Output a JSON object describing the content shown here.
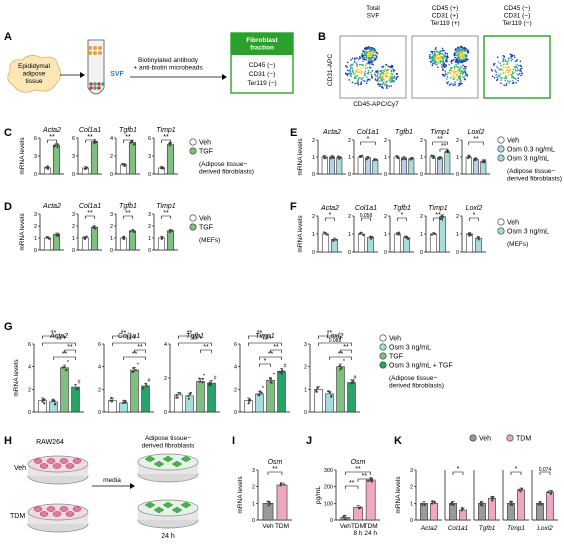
{
  "colors": {
    "veh": "#ffffff",
    "tgf": "#7fbf7f",
    "osm_low": "#b9d2ea",
    "osm": "#a6dcdc",
    "combo": "#2aa36a",
    "tdm": "#f0a8be",
    "veh_gray": "#9a9a9a",
    "box_green": "#2ca02c"
  },
  "panelA": {
    "letter": "A",
    "tissue": "Epididymal\nadipose\ntissue",
    "svf": "SVF",
    "antibody": "Biotinylated antibody\n+ anti-biotin microbeads",
    "fraction_title": "Fibroblast\nfraction",
    "markers": [
      "CD45 (−)",
      "CD31 (−)",
      "Ter119 (−)"
    ]
  },
  "panelB": {
    "letter": "B",
    "ylabel": "CD31-APC",
    "xlabel": "CD45-APC/Cy7",
    "plots": [
      {
        "title": "Total\nSVF"
      },
      {
        "title": "CD45 (+)\nCD31 (+)\nTer119 (+)"
      },
      {
        "title": "CD45 (−)\nCD31 (−)\nTer119 (−)"
      }
    ]
  },
  "legend_C": {
    "items": [
      "Veh",
      "TGF"
    ],
    "note": "(Adipose tissue−\nderived fibroblasts)"
  },
  "legend_D": {
    "items": [
      "Veh",
      "TGF"
    ],
    "note": "(MEFs)"
  },
  "legend_E": {
    "items": [
      "Veh",
      "Osm 0.3 ng/mL",
      "Osm 3 ng/mL"
    ],
    "note": "(Adipose tissue−\nderived fibroblasts)"
  },
  "legend_F": {
    "items": [
      "Veh",
      "Osm 3 ng/mL"
    ],
    "note": "(MEFs)"
  },
  "legend_G": {
    "items": [
      "Veh",
      "Osm 3 ng/mL",
      "TGF",
      "Osm 3 ng/mL + TGF"
    ],
    "note": "(Adipose tissue−\nderived fibroblasts)"
  },
  "panelH": {
    "letter": "H",
    "cell_line": "RAW264",
    "target": "Adipose tissue−\nderived fibroblasts",
    "veh": "Veh",
    "tdm": "TDM",
    "media": "media",
    "time": "24 h"
  },
  "legend_K": {
    "items": [
      "Veh",
      "TDM"
    ]
  },
  "chart_data": [
    {
      "panel": "C",
      "type": "bar",
      "ylabel": "mRNA levels",
      "series": [
        {
          "name": "Veh"
        },
        {
          "name": "TGF"
        }
      ],
      "groups": [
        {
          "gene": "Acta2",
          "ylim": [
            0,
            6
          ],
          "yticks": [
            0,
            3,
            6
          ],
          "values": [
            1.0,
            4.8
          ],
          "sig": [
            "**"
          ]
        },
        {
          "gene": "Col1a1",
          "ylim": [
            0,
            6
          ],
          "yticks": [
            0,
            3,
            6
          ],
          "values": [
            1.0,
            5.4
          ],
          "sig": [
            "**"
          ]
        },
        {
          "gene": "Tgfb1",
          "ylim": [
            0,
            4
          ],
          "yticks": [
            0,
            2,
            4
          ],
          "values": [
            1.0,
            3.5
          ],
          "sig": [
            "**"
          ]
        },
        {
          "gene": "Timp1",
          "ylim": [
            0,
            6
          ],
          "yticks": [
            0,
            3,
            6
          ],
          "values": [
            1.0,
            4.9
          ],
          "sig": [
            "**"
          ]
        }
      ]
    },
    {
      "panel": "D",
      "type": "bar",
      "ylabel": "mRNA levels",
      "series": [
        {
          "name": "Veh"
        },
        {
          "name": "TGF"
        }
      ],
      "groups": [
        {
          "gene": "Acta2",
          "ylim": [
            0,
            3
          ],
          "yticks": [
            0,
            1,
            2,
            3
          ],
          "values": [
            1.0,
            1.3
          ],
          "sig": []
        },
        {
          "gene": "Col1a1",
          "ylim": [
            0,
            3
          ],
          "yticks": [
            0,
            1,
            2,
            3
          ],
          "values": [
            1.0,
            1.9
          ],
          "sig": [
            "**"
          ]
        },
        {
          "gene": "Tgfb1",
          "ylim": [
            0,
            3
          ],
          "yticks": [
            0,
            1,
            2,
            3
          ],
          "values": [
            1.0,
            1.6
          ],
          "sig": [
            "**"
          ]
        },
        {
          "gene": "Timp1",
          "ylim": [
            0,
            3
          ],
          "yticks": [
            0,
            1,
            2,
            3
          ],
          "values": [
            1.0,
            1.6
          ],
          "sig": [
            "**"
          ]
        }
      ]
    },
    {
      "panel": "E",
      "type": "bar",
      "ylabel": "mRNA levels",
      "series": [
        {
          "name": "Veh"
        },
        {
          "name": "Osm 0.3 ng/mL"
        },
        {
          "name": "Osm 3 ng/mL"
        }
      ],
      "groups": [
        {
          "gene": "Acta2",
          "ylim": [
            0,
            2
          ],
          "yticks": [
            0,
            1,
            2
          ],
          "values": [
            1.0,
            1.0,
            0.95
          ],
          "sig": []
        },
        {
          "gene": "Col1a1",
          "ylim": [
            0,
            2
          ],
          "yticks": [
            0,
            1,
            2
          ],
          "values": [
            1.0,
            0.95,
            0.8
          ],
          "sig": [
            "*"
          ]
        },
        {
          "gene": "Tgfb1",
          "ylim": [
            0,
            2
          ],
          "yticks": [
            0,
            1,
            2
          ],
          "values": [
            1.0,
            0.95,
            0.9
          ],
          "sig": []
        },
        {
          "gene": "Timp1",
          "ylim": [
            0,
            2
          ],
          "yticks": [
            0,
            1,
            2
          ],
          "values": [
            1.0,
            0.95,
            1.3
          ],
          "sig": [
            "**",
            "**"
          ]
        },
        {
          "gene": "Loxl2",
          "ylim": [
            0,
            2
          ],
          "yticks": [
            0,
            1,
            2
          ],
          "values": [
            1.0,
            0.85,
            0.75
          ],
          "sig": [
            "**"
          ]
        }
      ]
    },
    {
      "panel": "F",
      "type": "bar",
      "ylabel": "mRNA levels",
      "series": [
        {
          "name": "Veh"
        },
        {
          "name": "Osm 3 ng/mL"
        }
      ],
      "groups": [
        {
          "gene": "Acta2",
          "ylim": [
            0,
            2
          ],
          "yticks": [
            0,
            1,
            2
          ],
          "values": [
            1.0,
            0.7
          ],
          "sig": [
            "*"
          ]
        },
        {
          "gene": "Col1a1",
          "ylim": [
            0,
            2
          ],
          "yticks": [
            0,
            1,
            2
          ],
          "values": [
            1.0,
            0.8
          ],
          "sig": [
            "0.058"
          ]
        },
        {
          "gene": "Tgfb1",
          "ylim": [
            0,
            2
          ],
          "yticks": [
            0,
            1,
            2
          ],
          "values": [
            1.0,
            0.8
          ],
          "sig": [
            "*"
          ]
        },
        {
          "gene": "Timp1",
          "ylim": [
            0,
            2
          ],
          "yticks": [
            0,
            1,
            2
          ],
          "values": [
            1.0,
            1.95
          ],
          "sig": [
            "**"
          ]
        },
        {
          "gene": "Loxl2",
          "ylim": [
            0,
            2
          ],
          "yticks": [
            0,
            1,
            2
          ],
          "values": [
            1.0,
            0.75
          ],
          "sig": [
            "*"
          ]
        }
      ]
    },
    {
      "panel": "G",
      "type": "bar",
      "ylabel": "mRNA levels",
      "series": [
        {
          "name": "Veh"
        },
        {
          "name": "Osm 3 ng/mL"
        },
        {
          "name": "TGF"
        },
        {
          "name": "Osm 3 ng/mL + TGF"
        }
      ],
      "groups": [
        {
          "gene": "Acta2",
          "ylim": [
            0,
            6
          ],
          "yticks": [
            0,
            2,
            4,
            6
          ],
          "values": [
            1.0,
            0.9,
            3.9,
            2.2
          ],
          "sig": [
            "**",
            "**",
            "**",
            "**"
          ],
          "marks": [
            "",
            "",
            "*",
            "#"
          ]
        },
        {
          "gene": "Col1a1",
          "ylim": [
            0,
            6
          ],
          "yticks": [
            0,
            2,
            4,
            6
          ],
          "values": [
            1.0,
            0.8,
            3.7,
            2.3
          ],
          "sig": [
            "**",
            "**",
            "**",
            "**"
          ],
          "marks": [
            "",
            "",
            "*",
            "#"
          ]
        },
        {
          "gene": "Tgfb1",
          "ylim": [
            0,
            4
          ],
          "yticks": [
            0,
            2,
            4
          ],
          "values": [
            1.0,
            0.95,
            1.8,
            1.7
          ],
          "sig": [
            "**",
            "**",
            "**"
          ],
          "marks": [
            "",
            "",
            "*",
            "#"
          ]
        },
        {
          "gene": "Timp1",
          "ylim": [
            0,
            6
          ],
          "yticks": [
            0,
            2,
            4,
            6
          ],
          "values": [
            1.0,
            1.6,
            2.8,
            3.6
          ],
          "sig": [
            "**",
            "**",
            "**",
            "**",
            "*"
          ],
          "marks": [
            "",
            "*",
            "*",
            "#"
          ]
        },
        {
          "gene": "Loxl2",
          "ylim": [
            0,
            3
          ],
          "yticks": [
            0,
            1,
            2,
            3
          ],
          "values": [
            1.0,
            0.8,
            2.0,
            1.3
          ],
          "sig": [
            "**",
            "0.088",
            "**",
            "**"
          ],
          "marks": [
            "",
            "",
            "*",
            "#"
          ]
        }
      ]
    },
    {
      "panel": "I",
      "type": "bar",
      "title": "Osm",
      "ylabel": "mRNA levels",
      "categories": [
        "Veh",
        "TDM"
      ],
      "values": [
        1.0,
        2.1
      ],
      "ylim": [
        0,
        3
      ],
      "yticks": [
        0,
        1,
        2,
        3
      ],
      "sig": [
        "**"
      ]
    },
    {
      "panel": "J",
      "type": "bar",
      "title": "Osm",
      "ylabel": "pg/mL",
      "categories": [
        "Veh",
        "TDM",
        "TDM"
      ],
      "sublabels": [
        "",
        "8 h",
        "24 h"
      ],
      "values": [
        15,
        75,
        240
      ],
      "ylim": [
        0,
        300
      ],
      "yticks": [
        0,
        100,
        200,
        300
      ],
      "sig": [
        "**",
        "**",
        "**"
      ]
    },
    {
      "panel": "K",
      "type": "bar",
      "ylabel": "mRNA levels",
      "series": [
        {
          "name": "Veh"
        },
        {
          "name": "TDM"
        }
      ],
      "groups": [
        {
          "gene": "Acta2",
          "values": [
            1.0,
            1.0
          ],
          "sig": []
        },
        {
          "gene": "Col1a1",
          "values": [
            1.0,
            0.6
          ],
          "sig": [
            "*"
          ]
        },
        {
          "gene": "Tgfb1",
          "values": [
            1.0,
            1.3
          ],
          "sig": []
        },
        {
          "gene": "Timp1",
          "values": [
            1.0,
            1.8
          ],
          "sig": [
            "*"
          ]
        },
        {
          "gene": "Loxl2",
          "values": [
            1.0,
            1.65
          ],
          "sig": [
            "0.074"
          ]
        }
      ],
      "ylim": [
        0,
        3
      ],
      "yticks": [
        0,
        1,
        2,
        3
      ]
    }
  ]
}
